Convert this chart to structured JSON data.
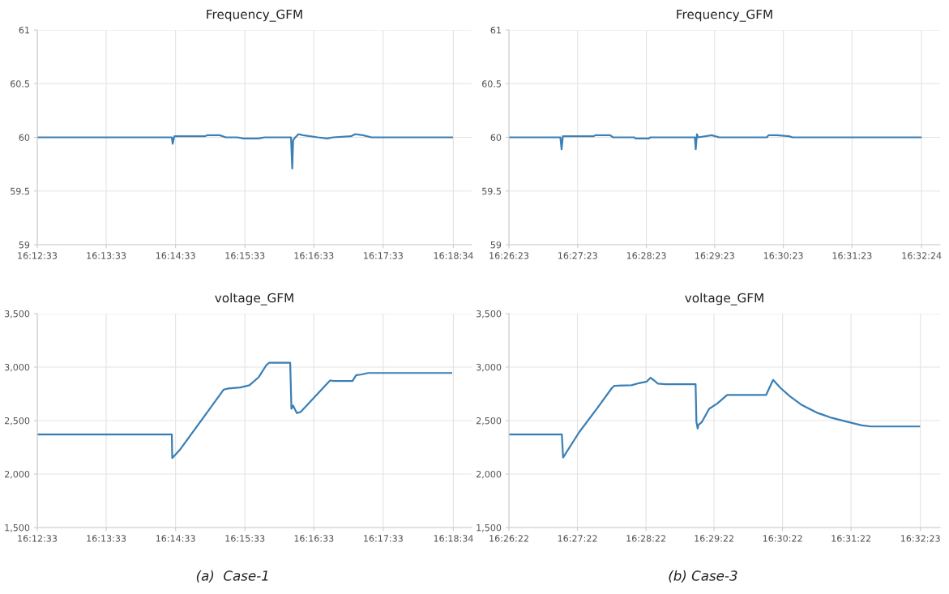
{
  "chart_data": [
    {
      "type": "line",
      "title": "Frequency_GFM",
      "grid": true,
      "line_style": "solid",
      "marker": "none",
      "x": [
        16.2092,
        16.2416,
        16.2418,
        16.2422,
        16.2495,
        16.2502,
        16.2531,
        16.2546,
        16.2574,
        16.2589,
        16.2625,
        16.2639,
        16.2703,
        16.2706,
        16.2708,
        16.2711,
        16.2721,
        16.2732,
        16.2768,
        16.279,
        16.2804,
        16.2847,
        16.2858,
        16.2876,
        16.2897,
        16.3091
      ],
      "series": [
        {
          "color": "#3a7fb5",
          "values": [
            60.0,
            60.0,
            59.94,
            60.01,
            60.01,
            60.02,
            60.02,
            60.0,
            60.0,
            59.99,
            59.99,
            60.0,
            60.0,
            59.71,
            59.97,
            59.99,
            60.03,
            60.02,
            60.0,
            59.99,
            60.0,
            60.01,
            60.03,
            60.02,
            60.0,
            60.0
          ]
        }
      ],
      "xlim": [
        16.2092,
        16.3138
      ],
      "ylim": [
        59,
        61
      ],
      "xticks": [
        {
          "value": 16.2092,
          "label": "16:12:33"
        },
        {
          "value": 16.2258,
          "label": "16:13:33"
        },
        {
          "value": 16.2425,
          "label": "16:14:33"
        },
        {
          "value": 16.2592,
          "label": "16:15:33"
        },
        {
          "value": 16.2758,
          "label": "16:16:33"
        },
        {
          "value": 16.2925,
          "label": "16:17:33"
        },
        {
          "value": 16.3094,
          "label": "16:18:34"
        }
      ],
      "yticks": [
        59,
        59.5,
        60,
        60.5,
        61
      ]
    },
    {
      "type": "line",
      "title": "Frequency_GFM",
      "grid": true,
      "line_style": "solid",
      "marker": "none",
      "x": [
        16.4397,
        16.4522,
        16.4525,
        16.4528,
        16.4603,
        16.4607,
        16.4643,
        16.465,
        16.4701,
        16.4705,
        16.4737,
        16.4741,
        16.4849,
        16.4851,
        16.4854,
        16.4857,
        16.489,
        16.4908,
        16.5024,
        16.5028,
        16.5049,
        16.5078,
        16.5086,
        16.5398
      ],
      "series": [
        {
          "color": "#3a7fb5",
          "values": [
            60.0,
            60.0,
            59.89,
            60.01,
            60.01,
            60.02,
            60.02,
            60.0,
            60.0,
            59.99,
            59.99,
            60.0,
            60.0,
            59.89,
            60.03,
            60.0,
            60.02,
            60.0,
            60.0,
            60.02,
            60.02,
            60.01,
            60.0,
            60.0
          ]
        }
      ],
      "xlim": [
        16.4397,
        16.5445
      ],
      "ylim": [
        59,
        61
      ],
      "xticks": [
        {
          "value": 16.4397,
          "label": "16:26:23"
        },
        {
          "value": 16.4564,
          "label": "16:27:23"
        },
        {
          "value": 16.4731,
          "label": "16:28:23"
        },
        {
          "value": 16.4897,
          "label": "16:29:23"
        },
        {
          "value": 16.5064,
          "label": "16:30:23"
        },
        {
          "value": 16.5231,
          "label": "16:31:23"
        },
        {
          "value": 16.54,
          "label": "16:32:24"
        }
      ],
      "yticks": [
        59,
        59.5,
        60,
        60.5,
        61
      ]
    },
    {
      "type": "line",
      "title": "voltage_GFM",
      "grid": true,
      "line_style": "solid",
      "marker": "none",
      "annotations": [
        "(a)  Case-1"
      ],
      "x": [
        16.2092,
        16.2416,
        16.2417,
        16.2436,
        16.2541,
        16.2552,
        16.2581,
        16.2603,
        16.2625,
        16.2643,
        16.265,
        16.2701,
        16.2704,
        16.2708,
        16.2717,
        16.2726,
        16.2797,
        16.2806,
        16.2851,
        16.286,
        16.2871,
        16.2889,
        16.3089
      ],
      "series": [
        {
          "color": "#3a7fb5",
          "values": [
            2370,
            2370,
            2150,
            2230,
            2790,
            2800,
            2810,
            2830,
            2905,
            3015,
            3040,
            3040,
            2610,
            2640,
            2570,
            2580,
            2875,
            2870,
            2870,
            2925,
            2930,
            2945,
            2945
          ]
        }
      ],
      "xlim": [
        16.2092,
        16.3138
      ],
      "ylim": [
        1500,
        3500
      ],
      "xticks": [
        {
          "value": 16.2092,
          "label": "16:12:33"
        },
        {
          "value": 16.2258,
          "label": "16:13:33"
        },
        {
          "value": 16.2425,
          "label": "16:14:33"
        },
        {
          "value": 16.2592,
          "label": "16:15:33"
        },
        {
          "value": 16.2758,
          "label": "16:16:33"
        },
        {
          "value": 16.2925,
          "label": "16:17:33"
        },
        {
          "value": 16.3094,
          "label": "16:18:34"
        }
      ],
      "yticks": [
        {
          "value": 1500,
          "label": "1,500"
        },
        {
          "value": 2000,
          "label": "2,000"
        },
        {
          "value": 2500,
          "label": "2,500"
        },
        {
          "value": 3000,
          "label": "3,000"
        },
        {
          "value": 3500,
          "label": "3,500"
        }
      ]
    },
    {
      "type": "line",
      "title": "voltage_GFM",
      "grid": true,
      "line_style": "solid",
      "marker": "none",
      "annotations": [
        "(b) Case-3"
      ],
      "x": [
        16.4394,
        16.4523,
        16.4526,
        16.4565,
        16.4609,
        16.4645,
        16.4651,
        16.4693,
        16.4711,
        16.473,
        16.4739,
        16.4748,
        16.4757,
        16.4776,
        16.4849,
        16.4851,
        16.4854,
        16.4856,
        16.4864,
        16.4882,
        16.4902,
        16.4926,
        16.5021,
        16.5038,
        16.5056,
        16.5078,
        16.5108,
        16.5144,
        16.5181,
        16.5218,
        16.5254,
        16.5276,
        16.5394
      ],
      "series": [
        {
          "color": "#3a7fb5",
          "values": [
            2370,
            2370,
            2155,
            2390,
            2615,
            2805,
            2825,
            2830,
            2850,
            2865,
            2900,
            2875,
            2845,
            2840,
            2840,
            2490,
            2425,
            2460,
            2485,
            2610,
            2660,
            2740,
            2740,
            2880,
            2805,
            2730,
            2645,
            2575,
            2525,
            2490,
            2455,
            2445,
            2445
          ]
        }
      ],
      "xlim": [
        16.4394,
        16.5445
      ],
      "ylim": [
        1500,
        3500
      ],
      "xticks": [
        {
          "value": 16.4394,
          "label": "16:26:22"
        },
        {
          "value": 16.4561,
          "label": "16:27:22"
        },
        {
          "value": 16.4728,
          "label": "16:28:22"
        },
        {
          "value": 16.4894,
          "label": "16:29:22"
        },
        {
          "value": 16.5061,
          "label": "16:30:22"
        },
        {
          "value": 16.5228,
          "label": "16:31:22"
        },
        {
          "value": 16.5397,
          "label": "16:32:23"
        }
      ],
      "yticks": [
        {
          "value": 1500,
          "label": "1,500"
        },
        {
          "value": 2000,
          "label": "2,000"
        },
        {
          "value": 2500,
          "label": "2,500"
        },
        {
          "value": 3000,
          "label": "3,000"
        },
        {
          "value": 3500,
          "label": "3,500"
        }
      ]
    }
  ]
}
